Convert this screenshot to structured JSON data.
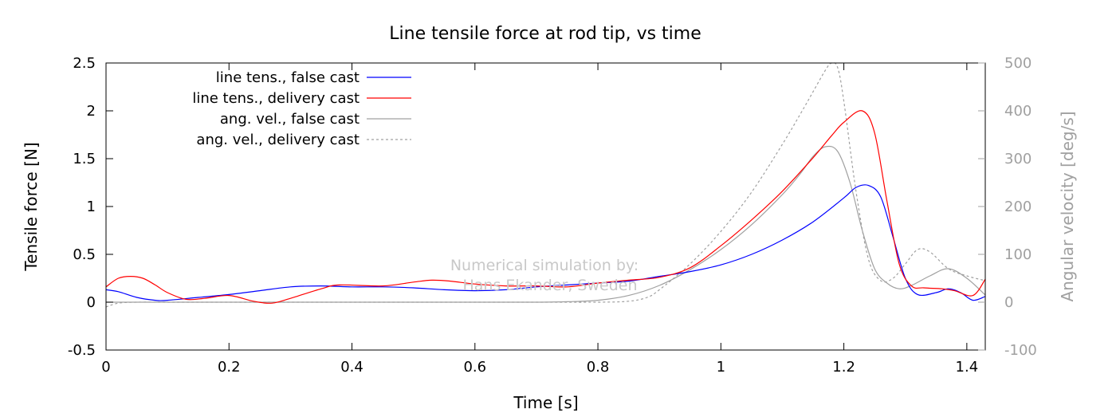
{
  "chart_data": {
    "type": "line",
    "title": "Line tensile force at rod tip, vs time",
    "xlabel": "Time [s]",
    "ylabel": "Tensile force [N]",
    "y2label": "Angular velocity [deg/s]",
    "xlim": [
      0,
      1.43
    ],
    "ylim": [
      -0.5,
      2.5
    ],
    "y2lim": [
      -100,
      500
    ],
    "xticks": [
      "0",
      "0.2",
      "0.4",
      "0.6",
      "0.8",
      "1",
      "1.2",
      "1.4"
    ],
    "yticks": [
      "-0.5",
      "0",
      "0.5",
      "1",
      "1.5",
      "2",
      "2.5"
    ],
    "y2ticks": [
      "-100",
      "0",
      "100",
      "200",
      "300",
      "400",
      "500"
    ],
    "watermark": [
      "Numerical simulation by:",
      "Hans Ekander, Sweden"
    ],
    "legend_position": "top-left",
    "colors": {
      "false_tension": "#0000ff",
      "delivery_tension": "#ff0000",
      "false_angvel": "#a0a0a0",
      "delivery_angvel": "#a0a0a0",
      "y2_axis": "#a0a0a0"
    },
    "series": [
      {
        "name": "line tens., false cast",
        "axis": "left",
        "style": "solid",
        "color": "#0000ff",
        "x": [
          0,
          0.02,
          0.05,
          0.08,
          0.1,
          0.15,
          0.2,
          0.25,
          0.3,
          0.35,
          0.4,
          0.45,
          0.5,
          0.55,
          0.6,
          0.65,
          0.7,
          0.75,
          0.8,
          0.85,
          0.9,
          0.95,
          1.0,
          1.05,
          1.1,
          1.15,
          1.2,
          1.22,
          1.24,
          1.26,
          1.28,
          1.3,
          1.32,
          1.35,
          1.37,
          1.39,
          1.41,
          1.43
        ],
        "y": [
          0.13,
          0.11,
          0.05,
          0.02,
          0.02,
          0.05,
          0.08,
          0.12,
          0.16,
          0.17,
          0.16,
          0.16,
          0.15,
          0.13,
          0.12,
          0.13,
          0.16,
          0.18,
          0.2,
          0.22,
          0.27,
          0.32,
          0.39,
          0.5,
          0.65,
          0.84,
          1.09,
          1.2,
          1.22,
          1.1,
          0.68,
          0.25,
          0.08,
          0.1,
          0.14,
          0.1,
          0.02,
          0.06
        ]
      },
      {
        "name": "line tens., delivery cast",
        "axis": "left",
        "style": "solid",
        "color": "#ff0000",
        "x": [
          0,
          0.02,
          0.04,
          0.06,
          0.08,
          0.1,
          0.13,
          0.16,
          0.2,
          0.24,
          0.27,
          0.3,
          0.35,
          0.38,
          0.45,
          0.5,
          0.53,
          0.56,
          0.6,
          0.65,
          0.7,
          0.75,
          0.8,
          0.85,
          0.9,
          0.95,
          1.0,
          1.05,
          1.1,
          1.15,
          1.18,
          1.2,
          1.23,
          1.25,
          1.27,
          1.29,
          1.31,
          1.33,
          1.36,
          1.38,
          1.41,
          1.43
        ],
        "y": [
          0.16,
          0.25,
          0.27,
          0.25,
          0.18,
          0.1,
          0.03,
          0.04,
          0.07,
          0.01,
          -0.01,
          0.04,
          0.14,
          0.18,
          0.17,
          0.21,
          0.23,
          0.22,
          0.19,
          0.17,
          0.17,
          0.16,
          0.2,
          0.23,
          0.26,
          0.36,
          0.59,
          0.86,
          1.16,
          1.51,
          1.74,
          1.88,
          2.0,
          1.77,
          1.06,
          0.4,
          0.17,
          0.15,
          0.14,
          0.12,
          0.07,
          0.24
        ]
      },
      {
        "name": "ang. vel., false cast",
        "axis": "right",
        "style": "solid",
        "color": "#a0a0a0",
        "x": [
          0,
          0.05,
          0.1,
          0.2,
          0.3,
          0.4,
          0.5,
          0.6,
          0.7,
          0.75,
          0.8,
          0.85,
          0.9,
          0.95,
          1.0,
          1.05,
          1.1,
          1.13,
          1.15,
          1.17,
          1.19,
          1.21,
          1.23,
          1.25,
          1.27,
          1.29,
          1.31,
          1.34,
          1.37,
          1.4,
          1.43
        ],
        "y": [
          0,
          0,
          0,
          0,
          0,
          0,
          0,
          0,
          0,
          1,
          4,
          14,
          35,
          68,
          110,
          162,
          225,
          270,
          305,
          325,
          315,
          250,
          150,
          70,
          40,
          28,
          35,
          55,
          70,
          50,
          15
        ]
      },
      {
        "name": "ang. vel., delivery cast",
        "axis": "right",
        "style": "dashed",
        "color": "#a0a0a0",
        "x": [
          0,
          0.02,
          0.05,
          0.1,
          0.2,
          0.3,
          0.4,
          0.5,
          0.6,
          0.7,
          0.8,
          0.85,
          0.88,
          0.9,
          0.95,
          1.0,
          1.05,
          1.1,
          1.13,
          1.15,
          1.17,
          1.18,
          1.19,
          1.2,
          1.22,
          1.24,
          1.26,
          1.28,
          1.3,
          1.32,
          1.34,
          1.37,
          1.4,
          1.43
        ],
        "y": [
          -10,
          -2,
          0,
          0,
          0,
          0,
          0,
          0,
          0,
          0,
          0,
          2,
          10,
          26,
          80,
          148,
          230,
          330,
          395,
          440,
          485,
          500,
          490,
          420,
          230,
          90,
          45,
          50,
          80,
          110,
          105,
          70,
          55,
          45
        ]
      }
    ]
  }
}
